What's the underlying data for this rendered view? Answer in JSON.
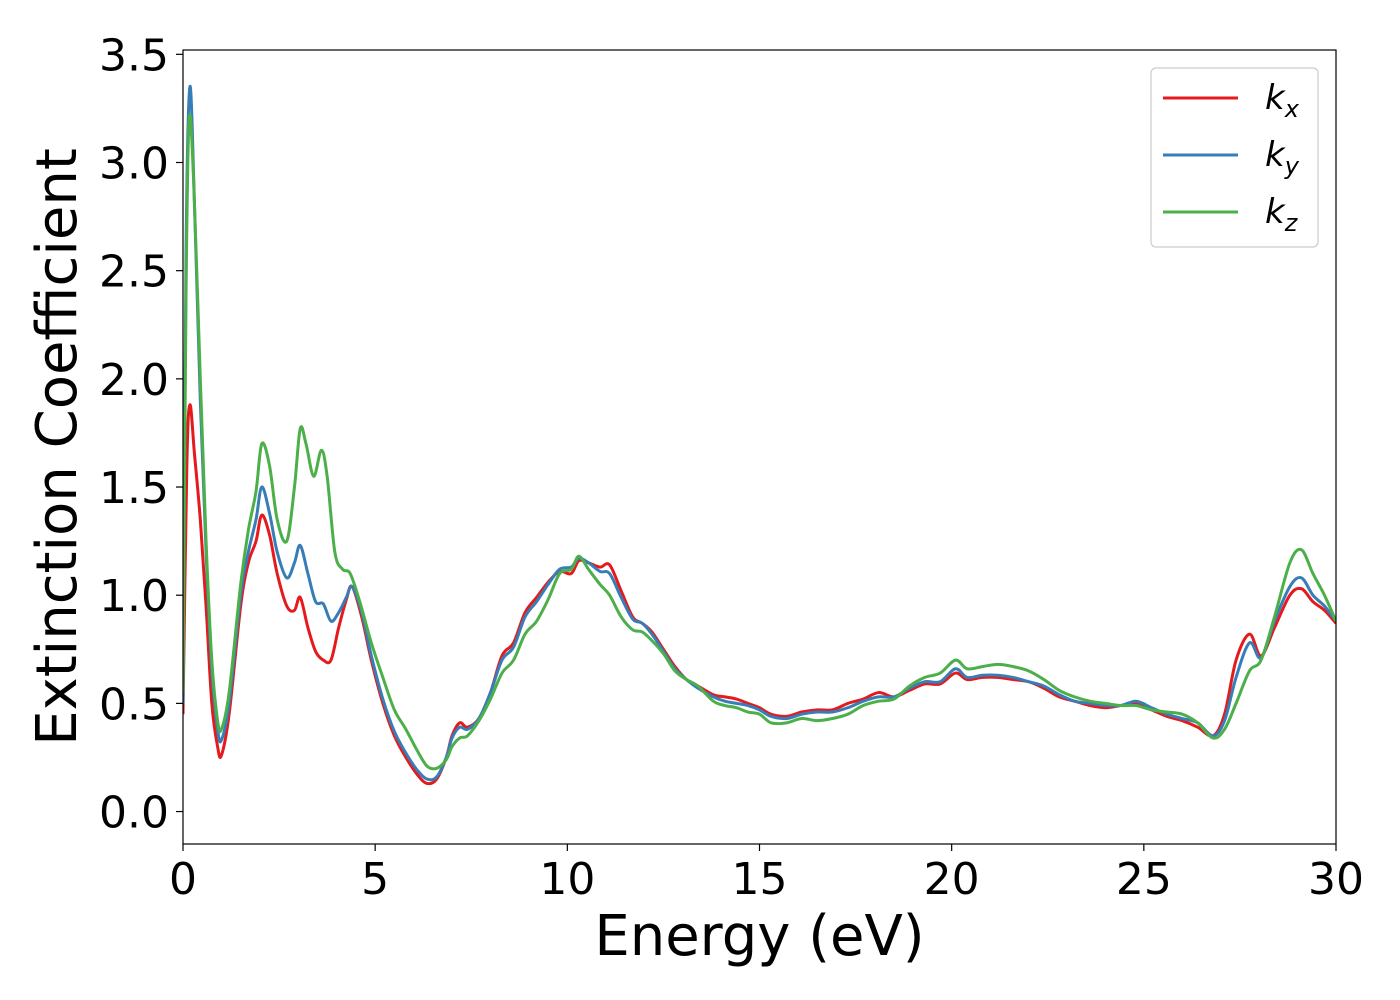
{
  "chart_data": {
    "type": "line",
    "title": "",
    "xlabel": "Energy (eV)",
    "ylabel": "Extinction Coefficient",
    "xlim": [
      0,
      30
    ],
    "ylim": [
      -0.15,
      3.52
    ],
    "xticks": [
      0,
      5,
      10,
      15,
      20,
      25,
      30
    ],
    "xtick_labels": [
      "0",
      "5",
      "10",
      "15",
      "20",
      "25",
      "30"
    ],
    "yticks": [
      0.0,
      0.5,
      1.0,
      1.5,
      2.0,
      2.5,
      3.0,
      3.5
    ],
    "ytick_labels": [
      "0.0",
      "0.5",
      "1.0",
      "1.5",
      "2.0",
      "2.5",
      "3.0",
      "3.5"
    ],
    "grid": false,
    "legend_position": "top-right",
    "series": [
      {
        "name_main": "k",
        "name_sub": "x",
        "color": "#e41a1c",
        "points": [
          [
            0,
            0.45
          ],
          [
            0.1,
            1.6
          ],
          [
            0.18,
            1.88
          ],
          [
            0.3,
            1.65
          ],
          [
            0.45,
            1.35
          ],
          [
            0.6,
            0.95
          ],
          [
            0.75,
            0.5
          ],
          [
            0.9,
            0.3
          ],
          [
            1.0,
            0.26
          ],
          [
            1.2,
            0.45
          ],
          [
            1.5,
            0.95
          ],
          [
            1.7,
            1.15
          ],
          [
            1.9,
            1.25
          ],
          [
            2.05,
            1.37
          ],
          [
            2.25,
            1.28
          ],
          [
            2.45,
            1.1
          ],
          [
            2.7,
            0.95
          ],
          [
            2.9,
            0.93
          ],
          [
            3.05,
            0.99
          ],
          [
            3.25,
            0.85
          ],
          [
            3.45,
            0.74
          ],
          [
            3.65,
            0.7
          ],
          [
            3.85,
            0.7
          ],
          [
            4.05,
            0.85
          ],
          [
            4.25,
            0.98
          ],
          [
            4.4,
            1.04
          ],
          [
            4.65,
            0.9
          ],
          [
            4.9,
            0.7
          ],
          [
            5.2,
            0.5
          ],
          [
            5.5,
            0.35
          ],
          [
            5.8,
            0.25
          ],
          [
            6.1,
            0.17
          ],
          [
            6.35,
            0.13
          ],
          [
            6.6,
            0.15
          ],
          [
            6.85,
            0.25
          ],
          [
            7.0,
            0.35
          ],
          [
            7.2,
            0.41
          ],
          [
            7.4,
            0.39
          ],
          [
            7.7,
            0.43
          ],
          [
            8.0,
            0.55
          ],
          [
            8.3,
            0.72
          ],
          [
            8.6,
            0.78
          ],
          [
            8.9,
            0.92
          ],
          [
            9.2,
            0.99
          ],
          [
            9.5,
            1.06
          ],
          [
            9.8,
            1.11
          ],
          [
            10.1,
            1.1
          ],
          [
            10.3,
            1.16
          ],
          [
            10.55,
            1.15
          ],
          [
            10.85,
            1.13
          ],
          [
            11.1,
            1.14
          ],
          [
            11.4,
            1.02
          ],
          [
            11.7,
            0.9
          ],
          [
            11.95,
            0.87
          ],
          [
            12.2,
            0.83
          ],
          [
            12.5,
            0.75
          ],
          [
            12.8,
            0.67
          ],
          [
            13.1,
            0.61
          ],
          [
            13.4,
            0.58
          ],
          [
            13.8,
            0.54
          ],
          [
            14.1,
            0.53
          ],
          [
            14.4,
            0.52
          ],
          [
            14.7,
            0.5
          ],
          [
            15.0,
            0.48
          ],
          [
            15.3,
            0.45
          ],
          [
            15.7,
            0.44
          ],
          [
            16.1,
            0.46
          ],
          [
            16.5,
            0.47
          ],
          [
            16.9,
            0.47
          ],
          [
            17.3,
            0.5
          ],
          [
            17.7,
            0.52
          ],
          [
            18.1,
            0.55
          ],
          [
            18.5,
            0.53
          ],
          [
            18.9,
            0.56
          ],
          [
            19.3,
            0.59
          ],
          [
            19.7,
            0.59
          ],
          [
            20.1,
            0.64
          ],
          [
            20.4,
            0.61
          ],
          [
            20.8,
            0.62
          ],
          [
            21.2,
            0.62
          ],
          [
            21.6,
            0.61
          ],
          [
            22.0,
            0.6
          ],
          [
            22.4,
            0.57
          ],
          [
            22.8,
            0.53
          ],
          [
            23.2,
            0.51
          ],
          [
            23.6,
            0.49
          ],
          [
            24.0,
            0.48
          ],
          [
            24.4,
            0.49
          ],
          [
            24.8,
            0.5
          ],
          [
            25.2,
            0.47
          ],
          [
            25.6,
            0.44
          ],
          [
            26.0,
            0.42
          ],
          [
            26.4,
            0.39
          ],
          [
            26.8,
            0.35
          ],
          [
            27.1,
            0.45
          ],
          [
            27.4,
            0.7
          ],
          [
            27.75,
            0.82
          ],
          [
            28.05,
            0.72
          ],
          [
            28.4,
            0.85
          ],
          [
            28.8,
            1.0
          ],
          [
            29.1,
            1.03
          ],
          [
            29.4,
            0.97
          ],
          [
            29.7,
            0.93
          ],
          [
            30.0,
            0.87
          ]
        ]
      },
      {
        "name_main": "k",
        "name_sub": "y",
        "color": "#377eb8",
        "points": [
          [
            0,
            0.5
          ],
          [
            0.08,
            2.6
          ],
          [
            0.18,
            3.35
          ],
          [
            0.3,
            2.8
          ],
          [
            0.45,
            1.9
          ],
          [
            0.6,
            1.2
          ],
          [
            0.75,
            0.65
          ],
          [
            0.9,
            0.38
          ],
          [
            1.0,
            0.33
          ],
          [
            1.2,
            0.5
          ],
          [
            1.5,
            1.0
          ],
          [
            1.7,
            1.2
          ],
          [
            1.9,
            1.35
          ],
          [
            2.05,
            1.5
          ],
          [
            2.25,
            1.38
          ],
          [
            2.45,
            1.2
          ],
          [
            2.7,
            1.08
          ],
          [
            2.9,
            1.15
          ],
          [
            3.05,
            1.23
          ],
          [
            3.25,
            1.1
          ],
          [
            3.45,
            0.97
          ],
          [
            3.65,
            0.96
          ],
          [
            3.85,
            0.88
          ],
          [
            4.05,
            0.92
          ],
          [
            4.25,
            0.99
          ],
          [
            4.4,
            1.04
          ],
          [
            4.65,
            0.92
          ],
          [
            4.9,
            0.72
          ],
          [
            5.2,
            0.52
          ],
          [
            5.5,
            0.37
          ],
          [
            5.8,
            0.27
          ],
          [
            6.1,
            0.19
          ],
          [
            6.35,
            0.15
          ],
          [
            6.6,
            0.16
          ],
          [
            6.85,
            0.25
          ],
          [
            7.0,
            0.34
          ],
          [
            7.2,
            0.39
          ],
          [
            7.4,
            0.38
          ],
          [
            7.7,
            0.43
          ],
          [
            8.0,
            0.55
          ],
          [
            8.3,
            0.7
          ],
          [
            8.6,
            0.76
          ],
          [
            8.9,
            0.9
          ],
          [
            9.2,
            0.97
          ],
          [
            9.5,
            1.05
          ],
          [
            9.8,
            1.12
          ],
          [
            10.1,
            1.13
          ],
          [
            10.3,
            1.17
          ],
          [
            10.55,
            1.15
          ],
          [
            10.85,
            1.11
          ],
          [
            11.1,
            1.1
          ],
          [
            11.4,
            0.99
          ],
          [
            11.7,
            0.89
          ],
          [
            11.95,
            0.87
          ],
          [
            12.2,
            0.82
          ],
          [
            12.5,
            0.74
          ],
          [
            12.8,
            0.66
          ],
          [
            13.1,
            0.61
          ],
          [
            13.4,
            0.57
          ],
          [
            13.8,
            0.53
          ],
          [
            14.1,
            0.51
          ],
          [
            14.4,
            0.5
          ],
          [
            14.7,
            0.49
          ],
          [
            15.0,
            0.47
          ],
          [
            15.3,
            0.44
          ],
          [
            15.7,
            0.43
          ],
          [
            16.1,
            0.45
          ],
          [
            16.5,
            0.46
          ],
          [
            16.9,
            0.46
          ],
          [
            17.3,
            0.48
          ],
          [
            17.7,
            0.51
          ],
          [
            18.1,
            0.53
          ],
          [
            18.5,
            0.53
          ],
          [
            18.9,
            0.57
          ],
          [
            19.3,
            0.6
          ],
          [
            19.7,
            0.6
          ],
          [
            20.1,
            0.66
          ],
          [
            20.4,
            0.62
          ],
          [
            20.8,
            0.63
          ],
          [
            21.2,
            0.63
          ],
          [
            21.6,
            0.62
          ],
          [
            22.0,
            0.6
          ],
          [
            22.4,
            0.58
          ],
          [
            22.8,
            0.54
          ],
          [
            23.2,
            0.51
          ],
          [
            23.6,
            0.5
          ],
          [
            24.0,
            0.49
          ],
          [
            24.4,
            0.49
          ],
          [
            24.8,
            0.51
          ],
          [
            25.2,
            0.48
          ],
          [
            25.6,
            0.45
          ],
          [
            26.0,
            0.43
          ],
          [
            26.4,
            0.41
          ],
          [
            26.8,
            0.35
          ],
          [
            27.1,
            0.42
          ],
          [
            27.4,
            0.62
          ],
          [
            27.75,
            0.78
          ],
          [
            28.05,
            0.71
          ],
          [
            28.4,
            0.88
          ],
          [
            28.8,
            1.04
          ],
          [
            29.1,
            1.08
          ],
          [
            29.4,
            1.0
          ],
          [
            29.7,
            0.95
          ],
          [
            30.0,
            0.88
          ]
        ]
      },
      {
        "name_main": "k",
        "name_sub": "z",
        "color": "#4daf4a",
        "points": [
          [
            0,
            0.55
          ],
          [
            0.08,
            2.4
          ],
          [
            0.16,
            3.2
          ],
          [
            0.28,
            2.9
          ],
          [
            0.45,
            2.0
          ],
          [
            0.6,
            1.25
          ],
          [
            0.75,
            0.7
          ],
          [
            0.9,
            0.42
          ],
          [
            1.0,
            0.38
          ],
          [
            1.2,
            0.55
          ],
          [
            1.5,
            1.05
          ],
          [
            1.7,
            1.3
          ],
          [
            1.9,
            1.48
          ],
          [
            2.05,
            1.7
          ],
          [
            2.25,
            1.6
          ],
          [
            2.45,
            1.35
          ],
          [
            2.7,
            1.25
          ],
          [
            2.9,
            1.5
          ],
          [
            3.05,
            1.77
          ],
          [
            3.2,
            1.7
          ],
          [
            3.4,
            1.55
          ],
          [
            3.6,
            1.67
          ],
          [
            3.75,
            1.55
          ],
          [
            3.95,
            1.2
          ],
          [
            4.15,
            1.12
          ],
          [
            4.35,
            1.1
          ],
          [
            4.6,
            0.97
          ],
          [
            4.9,
            0.78
          ],
          [
            5.2,
            0.62
          ],
          [
            5.5,
            0.47
          ],
          [
            5.8,
            0.38
          ],
          [
            6.1,
            0.28
          ],
          [
            6.35,
            0.21
          ],
          [
            6.6,
            0.2
          ],
          [
            6.85,
            0.24
          ],
          [
            7.0,
            0.3
          ],
          [
            7.2,
            0.34
          ],
          [
            7.4,
            0.35
          ],
          [
            7.7,
            0.42
          ],
          [
            8.0,
            0.52
          ],
          [
            8.3,
            0.64
          ],
          [
            8.6,
            0.7
          ],
          [
            8.9,
            0.82
          ],
          [
            9.2,
            0.88
          ],
          [
            9.5,
            0.98
          ],
          [
            9.8,
            1.1
          ],
          [
            10.1,
            1.12
          ],
          [
            10.3,
            1.18
          ],
          [
            10.55,
            1.12
          ],
          [
            10.85,
            1.05
          ],
          [
            11.1,
            1.0
          ],
          [
            11.4,
            0.9
          ],
          [
            11.7,
            0.84
          ],
          [
            11.95,
            0.83
          ],
          [
            12.2,
            0.79
          ],
          [
            12.5,
            0.73
          ],
          [
            12.8,
            0.65
          ],
          [
            13.1,
            0.61
          ],
          [
            13.4,
            0.58
          ],
          [
            13.8,
            0.51
          ],
          [
            14.1,
            0.49
          ],
          [
            14.4,
            0.48
          ],
          [
            14.7,
            0.46
          ],
          [
            15.0,
            0.45
          ],
          [
            15.3,
            0.41
          ],
          [
            15.7,
            0.41
          ],
          [
            16.1,
            0.43
          ],
          [
            16.5,
            0.42
          ],
          [
            16.9,
            0.43
          ],
          [
            17.3,
            0.45
          ],
          [
            17.7,
            0.49
          ],
          [
            18.1,
            0.51
          ],
          [
            18.5,
            0.52
          ],
          [
            18.9,
            0.58
          ],
          [
            19.3,
            0.62
          ],
          [
            19.7,
            0.64
          ],
          [
            20.1,
            0.7
          ],
          [
            20.4,
            0.66
          ],
          [
            20.8,
            0.67
          ],
          [
            21.2,
            0.68
          ],
          [
            21.6,
            0.67
          ],
          [
            22.0,
            0.65
          ],
          [
            22.4,
            0.61
          ],
          [
            22.8,
            0.56
          ],
          [
            23.2,
            0.53
          ],
          [
            23.6,
            0.51
          ],
          [
            24.0,
            0.5
          ],
          [
            24.4,
            0.49
          ],
          [
            24.8,
            0.49
          ],
          [
            25.2,
            0.47
          ],
          [
            25.6,
            0.46
          ],
          [
            26.0,
            0.45
          ],
          [
            26.4,
            0.41
          ],
          [
            26.8,
            0.34
          ],
          [
            27.1,
            0.38
          ],
          [
            27.4,
            0.5
          ],
          [
            27.75,
            0.65
          ],
          [
            28.05,
            0.7
          ],
          [
            28.4,
            0.9
          ],
          [
            28.8,
            1.15
          ],
          [
            29.1,
            1.21
          ],
          [
            29.4,
            1.1
          ],
          [
            29.7,
            1.0
          ],
          [
            30.0,
            0.88
          ]
        ]
      }
    ]
  }
}
